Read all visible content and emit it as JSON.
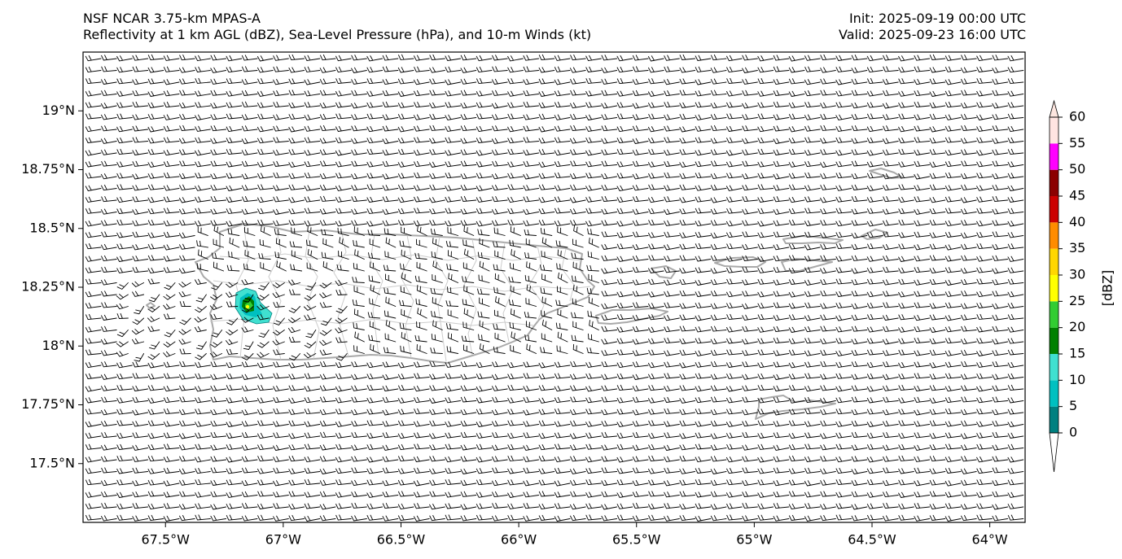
{
  "header": {
    "model_line": "NSF NCAR 3.75-km MPAS-A",
    "fields_line": "Reflectivity at 1 km AGL (dBZ), Sea-Level Pressure (hPa), and 10-m Winds (kt)",
    "init_line": "Init: 2025-09-19 00:00 UTC",
    "valid_line": "Valid: 2025-09-23 16:00 UTC"
  },
  "map": {
    "lon_range": [
      -67.85,
      -63.85
    ],
    "lat_range": [
      17.25,
      19.25
    ],
    "lat_ticks": [
      {
        "value": 19.0,
        "label": "19°N"
      },
      {
        "value": 18.75,
        "label": "18.75°N"
      },
      {
        "value": 18.5,
        "label": "18.5°N"
      },
      {
        "value": 18.25,
        "label": "18.25°N"
      },
      {
        "value": 18.0,
        "label": "18°N"
      },
      {
        "value": 17.75,
        "label": "17.75°N"
      },
      {
        "value": 17.5,
        "label": "17.5°N"
      }
    ],
    "lon_ticks": [
      {
        "value": -67.5,
        "label": "67.5°W"
      },
      {
        "value": -67.0,
        "label": "67°W"
      },
      {
        "value": -66.5,
        "label": "66.5°W"
      },
      {
        "value": -66.0,
        "label": "66°W"
      },
      {
        "value": -65.5,
        "label": "65.5°W"
      },
      {
        "value": -65.0,
        "label": "65°W"
      },
      {
        "value": -64.5,
        "label": "64.5°W"
      },
      {
        "value": -64.0,
        "label": "64°W"
      }
    ]
  },
  "colorbar": {
    "label": "[dBZ]",
    "levels": [
      "0",
      "5",
      "10",
      "15",
      "20",
      "25",
      "30",
      "35",
      "40",
      "45",
      "50",
      "55",
      "60"
    ],
    "colors": [
      "#008080",
      "#00c0c0",
      "#40e0d0",
      "#008000",
      "#32cd32",
      "#ffff00",
      "#ffd700",
      "#ff8c00",
      "#cc0000",
      "#8b0000",
      "#ff00ff",
      "#ffe4e1"
    ],
    "under_color": "#ffffff",
    "over_color": "#fde6e0"
  }
}
